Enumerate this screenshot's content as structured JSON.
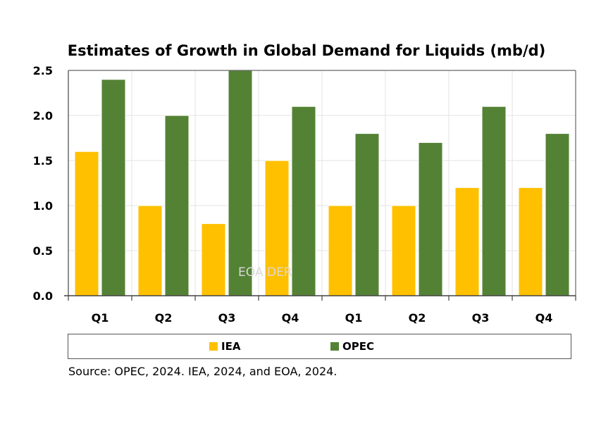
{
  "chart_data": {
    "type": "bar",
    "title": "Estimates of Growth in Global Demand for Liquids (mb/d)",
    "xlabel": "",
    "ylabel": "",
    "categories": [
      "Q1",
      "Q2",
      "Q3",
      "Q4",
      "Q1",
      "Q2",
      "Q3",
      "Q4"
    ],
    "series": [
      {
        "name": "IEA",
        "color": "#FFC000",
        "values": [
          1.6,
          1.0,
          0.8,
          1.5,
          1.0,
          1.0,
          1.2,
          1.2
        ]
      },
      {
        "name": "OPEC",
        "color": "#548235",
        "values": [
          2.4,
          2.0,
          2.5,
          2.1,
          1.8,
          1.7,
          2.1,
          1.8
        ]
      }
    ],
    "ylim": [
      0,
      2.5
    ],
    "yticks": [
      0.0,
      0.5,
      1.0,
      1.5,
      2.0,
      2.5
    ],
    "ytick_labels": [
      "0.0",
      "0.5",
      "1.0",
      "1.5",
      "2.0",
      "2.5"
    ],
    "grid": true,
    "legend_position": "bottom",
    "watermark": "EOA DER",
    "source": "Source: OPEC, 2024. IEA, 2024, and EOA, 2024."
  }
}
